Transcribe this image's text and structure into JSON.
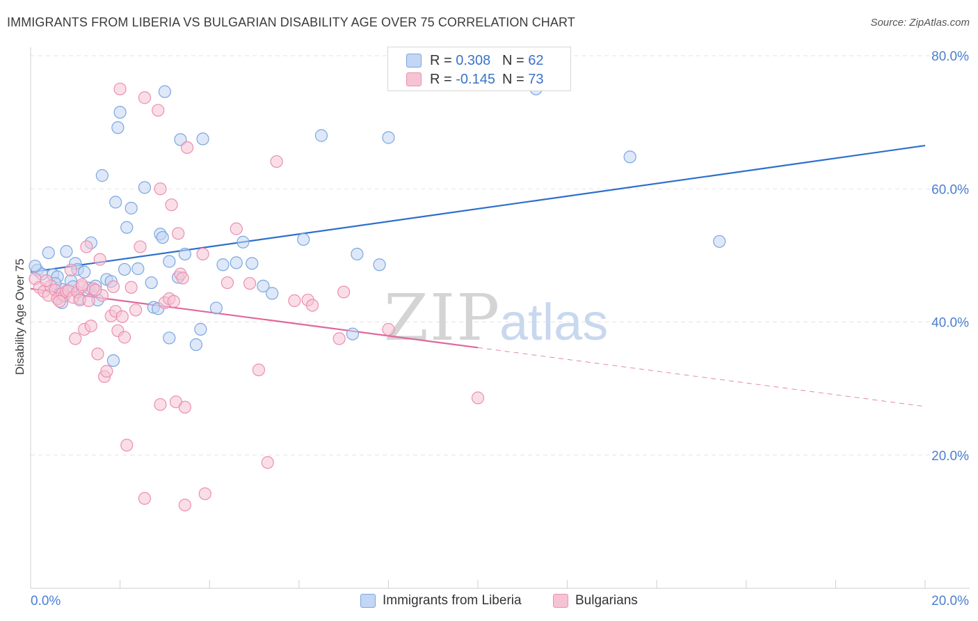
{
  "title": "IMMIGRANTS FROM LIBERIA VS BULGARIAN DISABILITY AGE OVER 75 CORRELATION CHART",
  "source": "Source: ZipAtlas.com",
  "watermark": {
    "zip": "ZIP",
    "atlas": "atlas"
  },
  "legend_top": [
    {
      "r_label": "R =",
      "r_value": "0.308",
      "n_label": "N =",
      "n_value": "62"
    },
    {
      "r_label": "R =",
      "r_value": "-0.145",
      "n_label": "N =",
      "n_value": "73"
    }
  ],
  "legend_bottom": [
    {
      "label": "Immigrants from Liberia"
    },
    {
      "label": "Bulgarians"
    }
  ],
  "colors": {
    "blue_fill": "#c3d6f3",
    "blue_stroke": "#7aa6e0",
    "blue_line": "#2d6fcc",
    "pink_fill": "#f6c3d4",
    "pink_stroke": "#ea8fb0",
    "pink_line": "#e0679a",
    "grid": "#e3e3e3",
    "tick_text": "#4a7fd0"
  },
  "chart_data": {
    "type": "scatter",
    "title": "IMMIGRANTS FROM LIBERIA VS BULGARIAN DISABILITY AGE OVER 75 CORRELATION CHART",
    "xlabel": "",
    "ylabel": "Disability Age Over 75",
    "xlim": [
      0,
      20
    ],
    "ylim": [
      0,
      80
    ],
    "x_tick_labels": [
      "0.0%",
      "20.0%"
    ],
    "y_tick_labels": [
      "20.0%",
      "40.0%",
      "60.0%",
      "80.0%"
    ],
    "y_ticks": [
      20,
      40,
      60,
      80
    ],
    "x_minor_ticks": [
      2,
      4,
      6,
      8,
      10,
      12,
      14,
      16,
      18,
      20
    ],
    "grid": true,
    "legend_position": "top-center",
    "series": [
      {
        "name": "Immigrants from Liberia",
        "color": "blue",
        "trend": {
          "x": [
            0,
            20
          ],
          "y": [
            47.5,
            66.5
          ],
          "dashed_from": null
        },
        "points": [
          [
            0.15,
            47.8
          ],
          [
            0.25,
            47.2
          ],
          [
            0.4,
            50.4
          ],
          [
            0.5,
            47.1
          ],
          [
            0.6,
            46.8
          ],
          [
            0.7,
            44.9
          ],
          [
            0.7,
            42.9
          ],
          [
            0.8,
            50.6
          ],
          [
            0.9,
            46.2
          ],
          [
            0.95,
            45.3
          ],
          [
            1.0,
            48.8
          ],
          [
            1.05,
            47.9
          ],
          [
            1.1,
            43.5
          ],
          [
            1.2,
            47.5
          ],
          [
            1.3,
            45.1
          ],
          [
            1.35,
            51.9
          ],
          [
            1.45,
            45.4
          ],
          [
            1.5,
            43.3
          ],
          [
            1.6,
            62.0
          ],
          [
            1.7,
            46.4
          ],
          [
            1.8,
            46.1
          ],
          [
            1.85,
            34.2
          ],
          [
            1.9,
            58.0
          ],
          [
            1.95,
            69.2
          ],
          [
            2.0,
            71.5
          ],
          [
            2.1,
            47.9
          ],
          [
            2.15,
            54.2
          ],
          [
            2.25,
            57.1
          ],
          [
            2.4,
            48.0
          ],
          [
            2.55,
            60.2
          ],
          [
            2.7,
            45.9
          ],
          [
            2.75,
            42.2
          ],
          [
            2.85,
            42.0
          ],
          [
            2.9,
            53.2
          ],
          [
            2.95,
            52.7
          ],
          [
            3.1,
            37.6
          ],
          [
            3.1,
            49.1
          ],
          [
            3.0,
            74.6
          ],
          [
            3.3,
            46.7
          ],
          [
            3.35,
            67.4
          ],
          [
            3.45,
            50.2
          ],
          [
            3.7,
            36.6
          ],
          [
            3.8,
            38.9
          ],
          [
            3.85,
            67.5
          ],
          [
            4.15,
            42.1
          ],
          [
            4.3,
            48.6
          ],
          [
            4.6,
            48.9
          ],
          [
            4.75,
            52.0
          ],
          [
            4.95,
            48.8
          ],
          [
            5.2,
            45.4
          ],
          [
            5.4,
            44.3
          ],
          [
            6.1,
            52.4
          ],
          [
            6.5,
            68.0
          ],
          [
            7.2,
            38.2
          ],
          [
            7.3,
            50.2
          ],
          [
            7.8,
            48.6
          ],
          [
            8.0,
            67.7
          ],
          [
            11.3,
            75.0
          ],
          [
            13.4,
            64.8
          ],
          [
            15.4,
            52.1
          ],
          [
            0.1,
            48.4
          ],
          [
            0.55,
            45.8
          ]
        ]
      },
      {
        "name": "Bulgarians",
        "color": "pink",
        "trend": {
          "x": [
            0,
            20
          ],
          "y": [
            45.0,
            27.3
          ],
          "solid_until_x": 10.0
        },
        "points": [
          [
            0.1,
            46.5
          ],
          [
            0.2,
            45.2
          ],
          [
            0.3,
            44.6
          ],
          [
            0.4,
            44.0
          ],
          [
            0.45,
            45.4
          ],
          [
            0.55,
            44.8
          ],
          [
            0.6,
            43.5
          ],
          [
            0.7,
            44.2
          ],
          [
            0.75,
            43.9
          ],
          [
            0.8,
            44.6
          ],
          [
            0.85,
            44.7
          ],
          [
            0.9,
            47.8
          ],
          [
            0.95,
            43.7
          ],
          [
            1.0,
            37.5
          ],
          [
            1.05,
            44.5
          ],
          [
            1.1,
            43.3
          ],
          [
            1.15,
            45.3
          ],
          [
            1.2,
            38.9
          ],
          [
            1.25,
            51.3
          ],
          [
            1.3,
            43.2
          ],
          [
            1.35,
            39.4
          ],
          [
            1.4,
            45.0
          ],
          [
            1.5,
            35.2
          ],
          [
            1.55,
            49.4
          ],
          [
            1.6,
            44.0
          ],
          [
            1.65,
            31.8
          ],
          [
            1.7,
            32.6
          ],
          [
            1.8,
            40.9
          ],
          [
            1.85,
            45.3
          ],
          [
            1.9,
            41.6
          ],
          [
            1.95,
            38.7
          ],
          [
            2.0,
            75.0
          ],
          [
            2.05,
            40.8
          ],
          [
            2.1,
            37.7
          ],
          [
            2.15,
            21.5
          ],
          [
            2.25,
            45.2
          ],
          [
            2.35,
            41.8
          ],
          [
            2.45,
            51.3
          ],
          [
            2.55,
            73.7
          ],
          [
            2.55,
            13.5
          ],
          [
            2.85,
            71.8
          ],
          [
            2.9,
            27.6
          ],
          [
            2.9,
            60.0
          ],
          [
            3.0,
            42.9
          ],
          [
            3.1,
            43.5
          ],
          [
            3.15,
            57.6
          ],
          [
            3.2,
            43.1
          ],
          [
            3.25,
            28.0
          ],
          [
            3.3,
            53.3
          ],
          [
            3.35,
            47.2
          ],
          [
            3.4,
            46.6
          ],
          [
            3.45,
            12.5
          ],
          [
            3.45,
            27.2
          ],
          [
            3.5,
            66.2
          ],
          [
            3.85,
            50.2
          ],
          [
            3.9,
            14.2
          ],
          [
            4.4,
            45.9
          ],
          [
            4.6,
            54.0
          ],
          [
            4.9,
            45.8
          ],
          [
            5.1,
            32.8
          ],
          [
            5.3,
            18.9
          ],
          [
            5.5,
            64.1
          ],
          [
            5.9,
            43.2
          ],
          [
            6.2,
            43.3
          ],
          [
            6.3,
            42.5
          ],
          [
            6.9,
            37.5
          ],
          [
            7.0,
            44.5
          ],
          [
            8.0,
            38.9
          ],
          [
            10.0,
            28.6
          ],
          [
            1.15,
            45.6
          ],
          [
            0.35,
            46.2
          ],
          [
            0.65,
            43.1
          ],
          [
            1.45,
            44.8
          ]
        ]
      }
    ]
  }
}
